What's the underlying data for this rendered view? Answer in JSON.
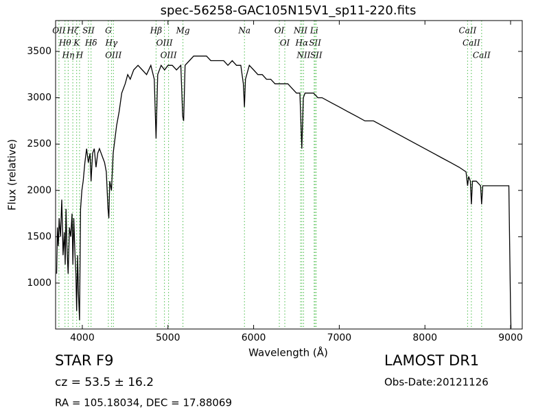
{
  "chart_data": {
    "type": "line",
    "title": "spec-56258-GAC105N15V1_sp11-220.fits",
    "x_label": "Wavelength (Å)",
    "y_label": "Flux (relative)",
    "xlim": [
      3688,
      9136
    ],
    "ylim": [
      504,
      3833
    ],
    "xticks": [
      4000,
      5000,
      6000,
      7000,
      8000,
      9000
    ],
    "yticks": [
      1000,
      1500,
      2000,
      2500,
      3000,
      3500
    ],
    "color": "#000000",
    "line_color": "#44bb44",
    "x": [
      3700,
      3710,
      3720,
      3730,
      3745,
      3760,
      3775,
      3790,
      3800,
      3810,
      3820,
      3835,
      3850,
      3865,
      3880,
      3890,
      3900,
      3915,
      3925,
      3934,
      3945,
      3955,
      3968,
      3980,
      3995,
      4010,
      4030,
      4050,
      4070,
      4090,
      4102,
      4120,
      4140,
      4160,
      4180,
      4200,
      4220,
      4240,
      4260,
      4280,
      4300,
      4310,
      4320,
      4340,
      4360,
      4380,
      4400,
      4430,
      4460,
      4500,
      4530,
      4560,
      4600,
      4650,
      4700,
      4750,
      4800,
      4840,
      4861,
      4880,
      4920,
      4960,
      5000,
      5050,
      5100,
      5150,
      5172,
      5183,
      5200,
      5250,
      5300,
      5350,
      5400,
      5450,
      5500,
      5550,
      5600,
      5650,
      5700,
      5750,
      5800,
      5850,
      5880,
      5893,
      5905,
      5950,
      6000,
      6050,
      6100,
      6150,
      6200,
      6250,
      6300,
      6350,
      6400,
      6450,
      6500,
      6540,
      6563,
      6580,
      6600,
      6650,
      6700,
      6750,
      6800,
      6900,
      7000,
      7100,
      7200,
      7300,
      7400,
      7500,
      7600,
      7700,
      7800,
      7900,
      8000,
      8100,
      8200,
      8300,
      8400,
      8480,
      8498,
      8510,
      8530,
      8542,
      8555,
      8600,
      8650,
      8662,
      8675,
      8700,
      8800,
      8900,
      8980,
      9000,
      9005
    ],
    "values": [
      1100,
      1600,
      1400,
      1700,
      1500,
      1900,
      1300,
      1550,
      1200,
      1800,
      1400,
      1100,
      1600,
      1500,
      1750,
      1200,
      1700,
      1300,
      1100,
      700,
      1300,
      900,
      600,
      1800,
      2000,
      2100,
      2300,
      2450,
      2300,
      2400,
      2100,
      2400,
      2450,
      2250,
      2400,
      2450,
      2400,
      2350,
      2300,
      2200,
      1800,
      1700,
      2100,
      2000,
      2400,
      2550,
      2700,
      2850,
      3050,
      3150,
      3250,
      3200,
      3300,
      3350,
      3300,
      3250,
      3350,
      3200,
      2560,
      3250,
      3350,
      3300,
      3350,
      3350,
      3300,
      3350,
      2800,
      2750,
      3350,
      3400,
      3450,
      3450,
      3450,
      3450,
      3400,
      3400,
      3400,
      3400,
      3350,
      3400,
      3350,
      3350,
      3150,
      2900,
      3200,
      3350,
      3300,
      3250,
      3250,
      3200,
      3200,
      3150,
      3150,
      3150,
      3150,
      3100,
      3050,
      3050,
      2450,
      3000,
      3050,
      3050,
      3050,
      3000,
      3000,
      2950,
      2900,
      2850,
      2800,
      2750,
      2750,
      2700,
      2650,
      2600,
      2550,
      2500,
      2450,
      2400,
      2350,
      2300,
      2250,
      2200,
      2050,
      2150,
      2100,
      1850,
      2100,
      2100,
      2050,
      1850,
      2050,
      2050,
      2050,
      2050,
      2050,
      700,
      510
    ],
    "spectral_lines": [
      {
        "label": "OII",
        "wavelength": 3727
      },
      {
        "label": "Hθ",
        "wavelength": 3798
      },
      {
        "label": "Hη",
        "wavelength": 3835
      },
      {
        "label": "Hζ",
        "wavelength": 3889
      },
      {
        "label": "K",
        "wavelength": 3934
      },
      {
        "label": "H",
        "wavelength": 3968
      },
      {
        "label": "SII",
        "wavelength": 4072
      },
      {
        "label": "Hδ",
        "wavelength": 4102
      },
      {
        "label": "G",
        "wavelength": 4304
      },
      {
        "label": "Hγ",
        "wavelength": 4340
      },
      {
        "label": "OIII",
        "wavelength": 4363
      },
      {
        "label": "Hβ",
        "wavelength": 4861
      },
      {
        "label": "OIII",
        "wavelength": 4959
      },
      {
        "label": "OIII",
        "wavelength": 5007
      },
      {
        "label": "Mg",
        "wavelength": 5175
      },
      {
        "label": "Na",
        "wavelength": 5893
      },
      {
        "label": "OI",
        "wavelength": 6300
      },
      {
        "label": "OI",
        "wavelength": 6364
      },
      {
        "label": "NII",
        "wavelength": 6548
      },
      {
        "label": "Hα",
        "wavelength": 6563
      },
      {
        "label": "NII",
        "wavelength": 6583
      },
      {
        "label": "Li",
        "wavelength": 6707
      },
      {
        "label": "SII",
        "wavelength": 6717
      },
      {
        "label": "SII",
        "wavelength": 6731
      },
      {
        "label": "CaII",
        "wavelength": 8498
      },
      {
        "label": "CaII",
        "wavelength": 8542
      },
      {
        "label": "CaII",
        "wavelength": 8662
      }
    ],
    "info": {
      "object_class": "STAR",
      "subclass": "F9",
      "redshift": "cz = 53.5 ± 16.2",
      "coordinates": "RA = 105.18034, DEC = 17.88069",
      "survey": "LAMOST DR1",
      "obs_date": "Obs-Date:20121126"
    }
  }
}
